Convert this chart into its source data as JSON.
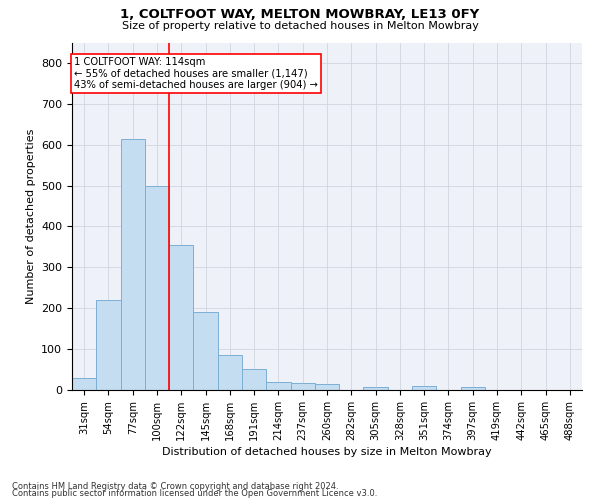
{
  "title": "1, COLTFOOT WAY, MELTON MOWBRAY, LE13 0FY",
  "subtitle": "Size of property relative to detached houses in Melton Mowbray",
  "xlabel": "Distribution of detached houses by size in Melton Mowbray",
  "ylabel": "Number of detached properties",
  "categories": [
    "31sqm",
    "54sqm",
    "77sqm",
    "100sqm",
    "122sqm",
    "145sqm",
    "168sqm",
    "191sqm",
    "214sqm",
    "237sqm",
    "260sqm",
    "282sqm",
    "305sqm",
    "328sqm",
    "351sqm",
    "374sqm",
    "397sqm",
    "419sqm",
    "442sqm",
    "465sqm",
    "488sqm"
  ],
  "bar_values": [
    30,
    220,
    615,
    500,
    355,
    190,
    85,
    52,
    20,
    17,
    15,
    0,
    7,
    0,
    9,
    0,
    7,
    0,
    0,
    0,
    0
  ],
  "bar_color": "#c5ddf0",
  "bar_edge_color": "#7bafd4",
  "redline_x": 3.5,
  "annotation_label": "1 COLTFOOT WAY: 114sqm",
  "annotation_line1": "← 55% of detached houses are smaller (1,147)",
  "annotation_line2": "43% of semi-detached houses are larger (904) →",
  "ylim": [
    0,
    850
  ],
  "yticks": [
    0,
    100,
    200,
    300,
    400,
    500,
    600,
    700,
    800
  ],
  "grid_color": "#c8d0dc",
  "bg_color": "#eef2f8",
  "footnote1": "Contains HM Land Registry data © Crown copyright and database right 2024.",
  "footnote2": "Contains public sector information licensed under the Open Government Licence v3.0."
}
